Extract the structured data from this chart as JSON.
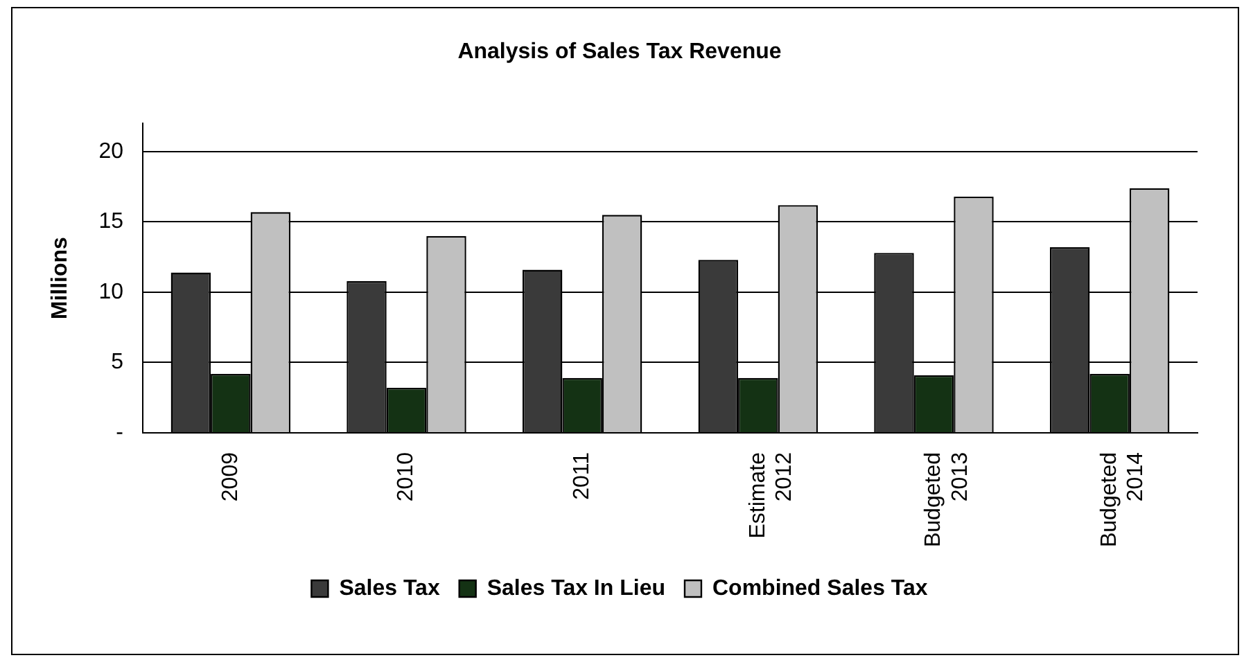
{
  "chart_data": {
    "type": "bar",
    "title": "Analysis of Sales Tax Revenue",
    "ylabel": "Millions",
    "categories": [
      "2009",
      "2010",
      "2011",
      "Estimate 2012",
      "Budgeted 2013",
      "Budgeted 2014"
    ],
    "series": [
      {
        "name": "Sales Tax",
        "color": "#3a3a3a",
        "values": [
          11.4,
          10.8,
          11.6,
          12.3,
          12.8,
          13.2
        ]
      },
      {
        "name": "Sales Tax In Lieu",
        "color": "#143214",
        "values": [
          4.2,
          3.2,
          3.9,
          3.9,
          4.1,
          4.2
        ]
      },
      {
        "name": "Combined Sales Tax",
        "color": "#c0c0c0",
        "values": [
          15.7,
          14.0,
          15.5,
          16.2,
          16.8,
          17.4
        ]
      }
    ],
    "ylim": [
      0,
      22
    ],
    "yticks": [
      {
        "value": 0,
        "label": "-"
      },
      5,
      10,
      15,
      20
    ],
    "grid": "y",
    "legend": "bottom"
  }
}
